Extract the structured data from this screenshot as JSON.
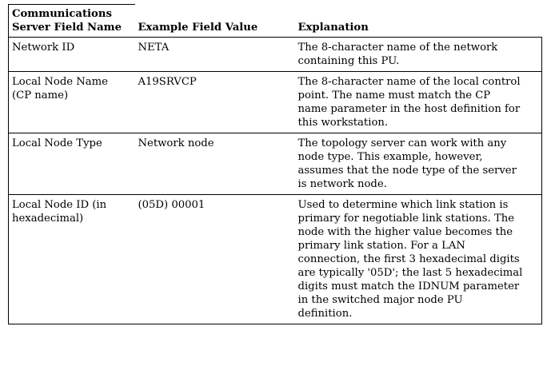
{
  "table": {
    "headers": [
      "Communications\nServer Field Name",
      "Example Field Value",
      "Explanation"
    ],
    "rows": [
      {
        "field": "Network ID",
        "value": "NETA",
        "explanation": "The 8-character name of the network\ncontaining this PU."
      },
      {
        "field": "Local Node Name\n(CP name)",
        "value": "A19SRVCP",
        "explanation": "The 8-character name of the local control\npoint. The name must match the CP\nname parameter in the host definition for\nthis workstation."
      },
      {
        "field": "Local Node Type",
        "value": "Network node",
        "explanation": "The topology server can work with any\nnode type. This example, however,\nassumes that the node type of the server\nis network node."
      },
      {
        "field": "Local Node ID (in\nhexadecimal)",
        "value": "(05D) 00001",
        "explanation": "Used to determine which link station is\nprimary for negotiable link stations. The\nnode with the higher value becomes the\nprimary link station. For a LAN\nconnection, the first 3 hexadecimal digits\nare typically '05D'; the last 5 hexadecimal\ndigits must match the IDNUM parameter\nin the switched major node PU\ndefinition."
      }
    ]
  }
}
